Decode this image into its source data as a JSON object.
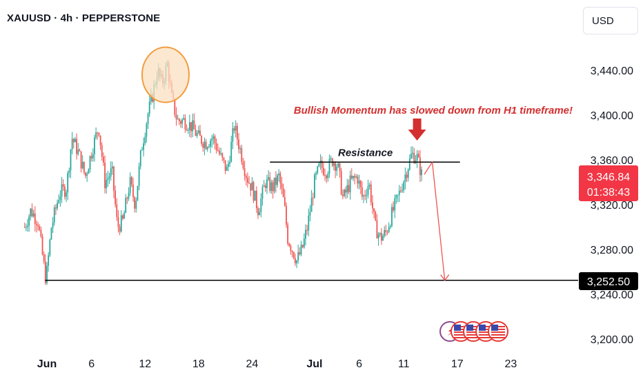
{
  "header": {
    "title": "XAUUSD · 4h · PEPPERSTONE"
  },
  "currency_button": {
    "label": "USD"
  },
  "colors": {
    "up": "#26a69a",
    "down": "#ef5350",
    "annotation_red": "#d32f2f",
    "line": "#000000",
    "highlight": "#fbe0c2",
    "highlight_stroke": "#f39c3d"
  },
  "chart_data": {
    "type": "candlestick",
    "title": "XAUUSD · 4h · PEPPERSTONE",
    "ylim": [
      3185,
      3475
    ],
    "y_ticks": [
      3200,
      3240,
      3280,
      3320,
      3360,
      3400,
      3440
    ],
    "y_tick_labels": [
      "3,200.00",
      "3,240.00",
      "3,280.00",
      "3,320.00",
      "3,360.00",
      "3,400.00",
      "3,440.00"
    ],
    "x_ticks": [
      {
        "label": "Jun",
        "day": 1,
        "bold": true
      },
      {
        "label": "6",
        "day": 6
      },
      {
        "label": "12",
        "day": 12
      },
      {
        "label": "18",
        "day": 18
      },
      {
        "label": "24",
        "day": 24
      },
      {
        "label": "Jul",
        "day": 31,
        "bold": true
      },
      {
        "label": "6",
        "day": 36
      },
      {
        "label": "11",
        "day": 41
      },
      {
        "label": "17",
        "day": 47
      },
      {
        "label": "23",
        "day": 53
      }
    ],
    "price_path": [
      [
        -1.5,
        3300
      ],
      [
        -0.8,
        3315
      ],
      [
        0,
        3305
      ],
      [
        0.5,
        3275
      ],
      [
        0.9,
        3252
      ],
      [
        1.5,
        3300
      ],
      [
        2.4,
        3330
      ],
      [
        3.2,
        3335
      ],
      [
        3.8,
        3380
      ],
      [
        4.6,
        3365
      ],
      [
        5.3,
        3345
      ],
      [
        6.1,
        3370
      ],
      [
        6.8,
        3390
      ],
      [
        7.5,
        3340
      ],
      [
        8.3,
        3350
      ],
      [
        8.9,
        3300
      ],
      [
        9.5,
        3305
      ],
      [
        10.3,
        3340
      ],
      [
        10.9,
        3320
      ],
      [
        11.6,
        3370
      ],
      [
        12.3,
        3400
      ],
      [
        12.9,
        3420
      ],
      [
        13.4,
        3440
      ],
      [
        13.9,
        3428
      ],
      [
        14.5,
        3445
      ],
      [
        15.0,
        3415
      ],
      [
        15.6,
        3395
      ],
      [
        16.4,
        3395
      ],
      [
        17.2,
        3390
      ],
      [
        18.0,
        3380
      ],
      [
        18.8,
        3375
      ],
      [
        19.6,
        3380
      ],
      [
        20.6,
        3360
      ],
      [
        21.2,
        3350
      ],
      [
        22.0,
        3390
      ],
      [
        22.8,
        3365
      ],
      [
        23.4,
        3345
      ],
      [
        24.0,
        3335
      ],
      [
        24.7,
        3315
      ],
      [
        25.5,
        3340
      ],
      [
        26.3,
        3335
      ],
      [
        27.0,
        3345
      ],
      [
        27.6,
        3320
      ],
      [
        28.0,
        3290
      ],
      [
        28.5,
        3280
      ],
      [
        29.0,
        3270
      ],
      [
        29.6,
        3280
      ],
      [
        30.2,
        3300
      ],
      [
        31.0,
        3340
      ],
      [
        31.6,
        3355
      ],
      [
        32.3,
        3350
      ],
      [
        33.0,
        3360
      ],
      [
        33.6,
        3355
      ],
      [
        34.2,
        3325
      ],
      [
        35.0,
        3340
      ],
      [
        35.8,
        3345
      ],
      [
        36.4,
        3325
      ],
      [
        37.1,
        3340
      ],
      [
        37.8,
        3300
      ],
      [
        38.4,
        3290
      ],
      [
        39.0,
        3295
      ],
      [
        39.6,
        3310
      ],
      [
        40.5,
        3330
      ],
      [
        41.3,
        3350
      ],
      [
        41.9,
        3365
      ],
      [
        42.5,
        3362
      ],
      [
        43.0,
        3346.84
      ]
    ],
    "current_price": {
      "value": 3346.84,
      "label": "3,346.84",
      "countdown": "01:38:43"
    },
    "support_level": {
      "value": 3252.5,
      "label": "3,252.50"
    },
    "resistance_level": {
      "value": 3358,
      "label": "Resistance",
      "from_day": 26,
      "to_day": 47.3
    },
    "annotations": {
      "headline": "Bullish Momentum has slowed down from H1 timeframe!"
    },
    "projection": [
      [
        43.3,
        3347
      ],
      [
        44.2,
        3358
      ],
      [
        45.6,
        3252.5
      ]
    ]
  }
}
